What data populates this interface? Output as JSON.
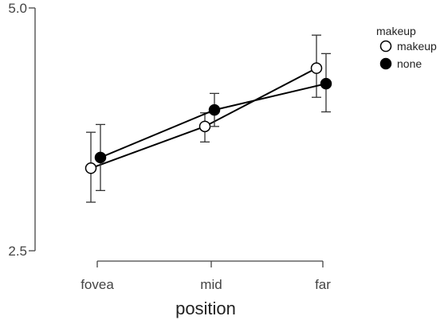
{
  "chart_data": {
    "type": "line",
    "categories": [
      "fovea",
      "mid",
      "far"
    ],
    "xlabel": "position",
    "ylabel": "",
    "ylim": [
      2.5,
      5.0
    ],
    "yticks": [
      "2.5",
      "5.0"
    ],
    "grid": false,
    "legend": {
      "title": "makeup",
      "placement": "top-right"
    },
    "series": [
      {
        "name": "makeup",
        "marker": "open-circle",
        "color": "#000000",
        "fill": "#ffffff",
        "values": [
          3.35,
          3.78,
          4.38
        ],
        "err_low": [
          3.0,
          3.62,
          4.08
        ],
        "err_high": [
          3.72,
          3.92,
          4.72
        ]
      },
      {
        "name": "none",
        "marker": "filled-circle",
        "color": "#000000",
        "fill": "#000000",
        "values": [
          3.46,
          3.95,
          4.22
        ],
        "err_low": [
          3.12,
          3.78,
          3.93
        ],
        "err_high": [
          3.8,
          4.12,
          4.53
        ]
      }
    ]
  }
}
